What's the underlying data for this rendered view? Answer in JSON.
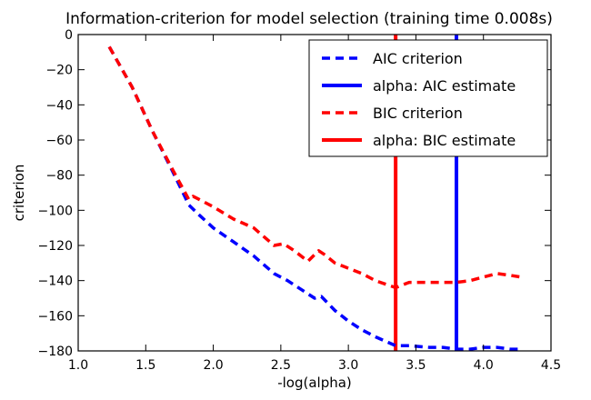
{
  "chart_data": {
    "type": "line",
    "title": "Information-criterion for model selection (training time 0.008s)",
    "xlabel": "-log(alpha)",
    "ylabel": "criterion",
    "xlim": [
      1.0,
      4.5
    ],
    "ylim": [
      -180,
      0
    ],
    "xticks": [
      1.0,
      1.5,
      2.0,
      2.5,
      3.0,
      3.5,
      4.0,
      4.5
    ],
    "xtick_labels": [
      "1.0",
      "1.5",
      "2.0",
      "2.5",
      "3.0",
      "3.5",
      "4.0",
      "4.5"
    ],
    "yticks": [
      0,
      -20,
      -40,
      -60,
      -80,
      -100,
      -120,
      -140,
      -160,
      -180
    ],
    "ytick_labels": [
      "0",
      "−20",
      "−40",
      "−60",
      "−80",
      "−100",
      "−120",
      "−140",
      "−160",
      "−180"
    ],
    "grid": false,
    "legend_position": "top-right",
    "series": [
      {
        "name": "AIC criterion",
        "style": "dashed",
        "color": "#0000ff",
        "x": [
          1.23,
          1.4,
          1.55,
          1.7,
          1.82,
          1.9,
          2.0,
          2.15,
          2.3,
          2.45,
          2.55,
          2.65,
          2.75,
          2.8,
          2.9,
          3.0,
          3.1,
          3.2,
          3.35,
          3.45,
          3.6,
          3.7,
          3.8,
          3.9,
          4.0,
          4.1,
          4.2,
          4.28
        ],
        "y": [
          -7,
          -30,
          -55,
          -78,
          -97,
          -103,
          -110,
          -118,
          -126,
          -136,
          -140,
          -145,
          -150,
          -149,
          -157,
          -163,
          -168,
          -172,
          -177,
          -177,
          -178,
          -178,
          -179,
          -179,
          -178,
          -178,
          -179,
          -179
        ]
      },
      {
        "name": "BIC criterion",
        "style": "dashed",
        "color": "#ff0000",
        "x": [
          1.23,
          1.4,
          1.55,
          1.7,
          1.82,
          1.85,
          1.9,
          2.0,
          2.15,
          2.3,
          2.45,
          2.52,
          2.6,
          2.7,
          2.78,
          2.82,
          2.9,
          3.0,
          3.1,
          3.2,
          3.35,
          3.45,
          3.6,
          3.7,
          3.8,
          3.9,
          4.0,
          4.1,
          4.2,
          4.28
        ],
        "y": [
          -7,
          -30,
          -55,
          -77,
          -94,
          -92,
          -94,
          -98,
          -105,
          -110,
          -120,
          -119,
          -123,
          -129,
          -123,
          -125,
          -130,
          -133,
          -136,
          -140,
          -144,
          -141,
          -141,
          -141,
          -141,
          -140,
          -138,
          -136,
          -137,
          -138
        ]
      }
    ],
    "vlines": [
      {
        "name": "alpha: AIC estimate",
        "x": 3.8,
        "color": "#0000ff"
      },
      {
        "name": "alpha: BIC estimate",
        "x": 3.35,
        "color": "#ff0000"
      }
    ],
    "legend": [
      {
        "label": "AIC criterion",
        "style": "dashed",
        "color": "#0000ff"
      },
      {
        "label": "alpha: AIC estimate",
        "style": "solid",
        "color": "#0000ff"
      },
      {
        "label": "BIC criterion",
        "style": "dashed",
        "color": "#ff0000"
      },
      {
        "label": "alpha: BIC estimate",
        "style": "solid",
        "color": "#ff0000"
      }
    ]
  }
}
